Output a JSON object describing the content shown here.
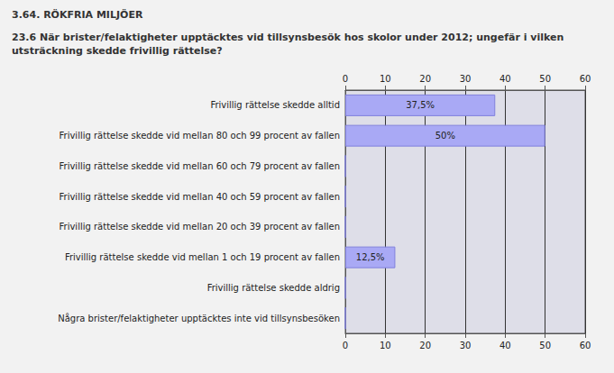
{
  "chart_data": {
    "type": "bar",
    "title": "3.64. RÖKFRIA MILJÖER",
    "subtitle": "23.6 När brister/felaktigheter upptäcktes vid tillsynsbesök hos skolor under 2012; ungefär i vilken utsträckning skedde frivillig rättelse?",
    "categories": [
      "Frivillig rättelse skedde alltid",
      "Frivillig rättelse skedde vid mellan 80 och 99 procent av fallen",
      "Frivillig rättelse skedde vid mellan 60 och 79 procent av fallen",
      "Frivillig rättelse skedde vid mellan 40 och 59 procent av fallen",
      "Frivillig rättelse skedde vid mellan 20 och 39 procent av fallen",
      "Frivillig rättelse skedde vid mellan 1 och 19 procent av fallen",
      "Frivillig rättelse skedde aldrig",
      "Några brister/felaktigheter upptäcktes inte vid tillsynsbesöken"
    ],
    "values": [
      37.5,
      50,
      0,
      0,
      0,
      12.5,
      0,
      0
    ],
    "value_labels": [
      "37,5%",
      "50%",
      null,
      null,
      null,
      "12,5%",
      null,
      null
    ],
    "color": "#a9a9f5",
    "xlim": [
      0,
      60
    ],
    "xticks": [
      0,
      10,
      20,
      30,
      40,
      50,
      60
    ],
    "grid": true,
    "orientation": "horizontal",
    "data_labels": true
  }
}
